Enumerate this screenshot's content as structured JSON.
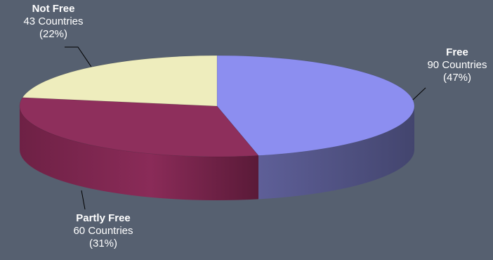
{
  "chart_data": {
    "type": "pie",
    "style": "3d",
    "categories": [
      "Free",
      "Partly Free",
      "Not Free"
    ],
    "values": [
      90,
      60,
      43
    ],
    "percent_labels": [
      "(47%)",
      "(31%)",
      "(22%)"
    ],
    "count_labels": [
      "90 Countries",
      "60 Countries",
      "43 Countries"
    ],
    "colors": [
      "#8c8ef0",
      "#8e2f5c",
      "#eeedbd"
    ],
    "background": "#566070",
    "legend": "none"
  }
}
